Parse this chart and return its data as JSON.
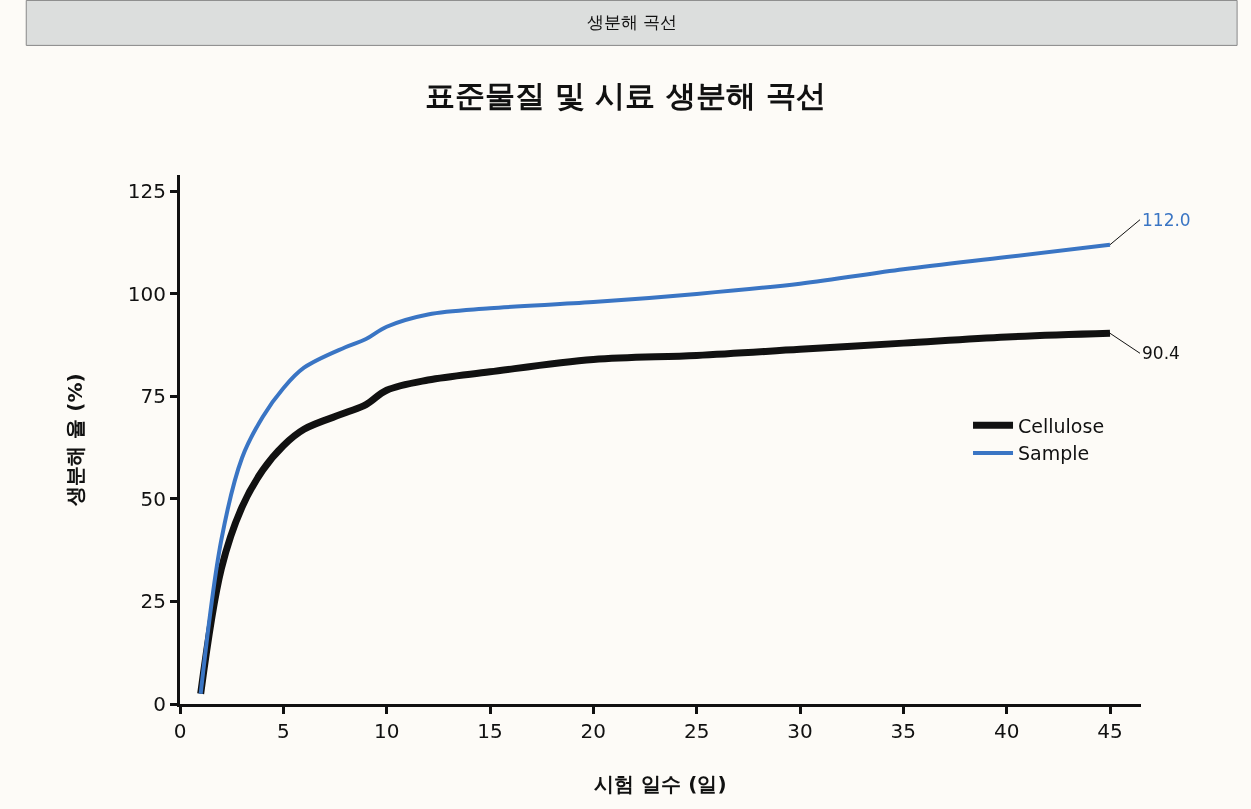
{
  "chart_data": {
    "type": "line",
    "subtitle": "생분해 곡선",
    "title": "표준물질 및 시료 생분해 곡선",
    "xlabel": "시험 일수 (일)",
    "ylabel": "생분해 율 (%)",
    "x": [
      1,
      2,
      3,
      4,
      5,
      6,
      8,
      9,
      10,
      12,
      15,
      20,
      25,
      30,
      35,
      40,
      45
    ],
    "series": [
      {
        "name": "Cellulose",
        "color": "#111111",
        "values": [
          2.5,
          33,
          48,
          57,
          63,
          67,
          71,
          73,
          76.5,
          79,
          81,
          84,
          85,
          86.5,
          88,
          89.5,
          90.4
        ]
      },
      {
        "name": "Sample",
        "color": "#3a75c4",
        "values": [
          2.5,
          40,
          60,
          70,
          77,
          82,
          87,
          89,
          92,
          95,
          96.5,
          98,
          100,
          102.5,
          106,
          109,
          112.0
        ]
      }
    ],
    "annotations": [
      {
        "text": "112.0",
        "x": 45,
        "y": 112.0
      },
      {
        "text": "90.4",
        "x": 45,
        "y": 90.4
      }
    ],
    "xlim": [
      0,
      46.5
    ],
    "xticks": [
      0,
      5,
      10,
      15,
      20,
      25,
      30,
      35,
      40,
      45
    ],
    "ylim": [
      0,
      129
    ],
    "yticks": [
      0,
      25,
      50,
      75,
      100,
      125
    ],
    "grid": false,
    "legend": "right",
    "marker": "none",
    "line_style": "solid"
  }
}
